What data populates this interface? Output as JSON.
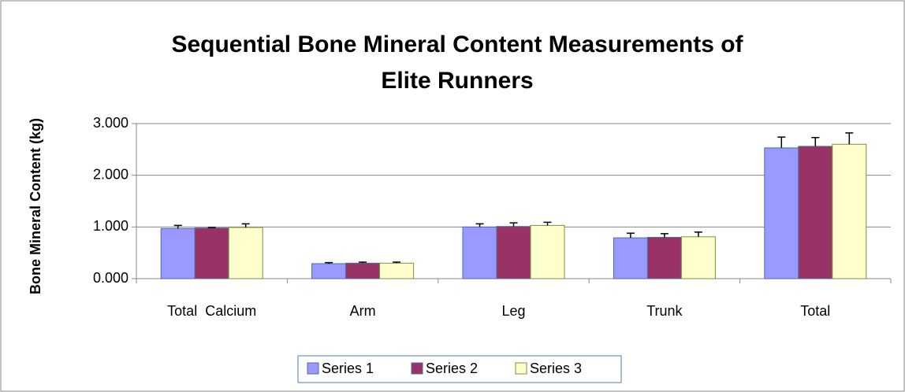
{
  "chart_data": {
    "type": "bar",
    "title": "Sequential Bone Mineral Content Measurements of Elite Runners",
    "y_label": "Bone Mineral Content (kg)",
    "categories": [
      "Total  Calcium",
      "Arm",
      "Leg",
      "Trunk",
      "Total"
    ],
    "series": [
      {
        "name": "Series 1",
        "color": "#9999ff",
        "values": [
          0.97,
          0.29,
          1.0,
          0.79,
          2.53
        ],
        "errors": [
          0.06,
          0.02,
          0.06,
          0.09,
          0.21
        ]
      },
      {
        "name": "Series 2",
        "color": "#993366",
        "values": [
          0.98,
          0.3,
          1.01,
          0.8,
          2.56
        ],
        "errors": [
          0.01,
          0.02,
          0.07,
          0.07,
          0.17
        ]
      },
      {
        "name": "Series 3",
        "color": "#ffffcc",
        "values": [
          0.99,
          0.3,
          1.03,
          0.81,
          2.6
        ],
        "errors": [
          0.07,
          0.02,
          0.06,
          0.09,
          0.22
        ]
      }
    ],
    "ylim": [
      0,
      3
    ],
    "yticks": [
      {
        "value": 0,
        "label": "0.000"
      },
      {
        "value": 1,
        "label": "1.000"
      },
      {
        "value": 2,
        "label": "2.000"
      },
      {
        "value": 3,
        "label": "3.000"
      }
    ],
    "grid": true,
    "legend": "bottom"
  }
}
